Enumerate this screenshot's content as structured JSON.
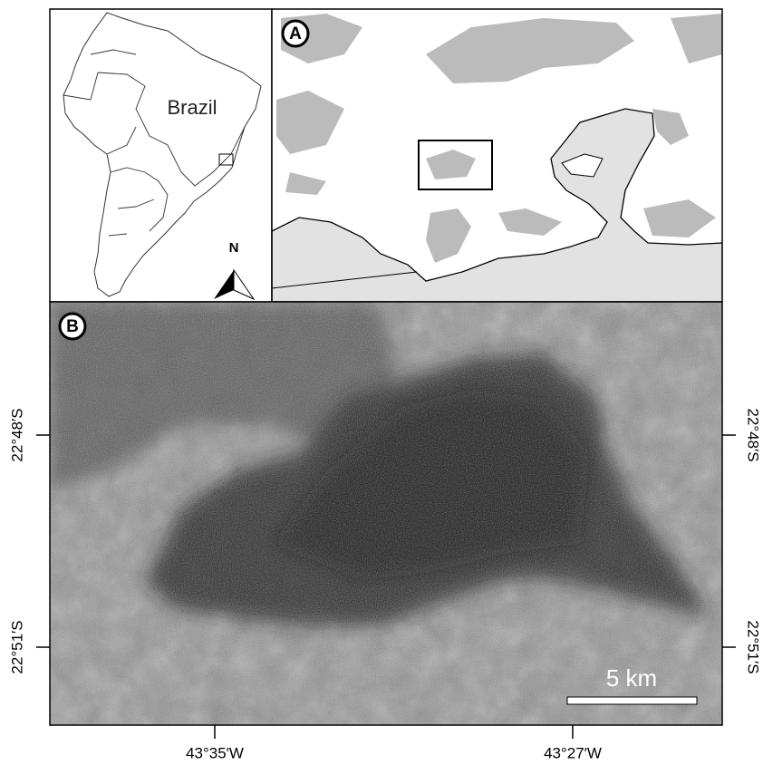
{
  "inset": {
    "country_label": "Brazil",
    "north_label": "N"
  },
  "panel_a": {
    "label": "A"
  },
  "panel_b": {
    "label": "B",
    "scale_bar": "5 km",
    "lat_labels": [
      "22°48′S",
      "22°51′S"
    ],
    "lon_labels": [
      "43°35′W",
      "43°27′W"
    ]
  }
}
